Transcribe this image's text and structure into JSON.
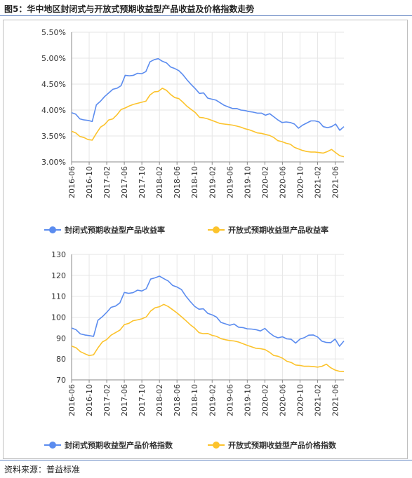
{
  "figure_title": "图5：华中地区封闭式与开放式预期收益型产品收益及价格指数走势",
  "source_label": "资料来源：普益标准",
  "colors": {
    "closed": "#5b8cef",
    "open": "#fcc32c",
    "grid": "#e6e6e6",
    "axis": "#888888"
  },
  "chart_data": [
    {
      "type": "line",
      "title": "",
      "xlabel": "",
      "ylabel": "",
      "ylim": [
        3.0,
        5.5
      ],
      "y_ticks": [
        "3.00%",
        "3.50%",
        "4.00%",
        "4.50%",
        "5.00%",
        "5.50%"
      ],
      "x_tick_labels": [
        "2016-06",
        "2016-10",
        "2017-02",
        "2017-06",
        "2017-10",
        "2018-02",
        "2018-06",
        "2018-10",
        "2019-02",
        "2019-06",
        "2019-10",
        "2020-02",
        "2020-06",
        "2020-10",
        "2021-02",
        "2021-06"
      ],
      "legend_position": "bottom-center",
      "grid": true,
      "series": [
        {
          "name": "封闭式预期收益型产品收益率",
          "values": [
            3.95,
            3.92,
            3.83,
            3.81,
            3.8,
            3.78,
            4.1,
            4.17,
            4.26,
            4.33,
            4.4,
            4.42,
            4.47,
            4.67,
            4.66,
            4.67,
            4.71,
            4.7,
            4.74,
            4.93,
            4.97,
            4.99,
            4.94,
            4.91,
            4.83,
            4.8,
            4.76,
            4.68,
            4.58,
            4.49,
            4.41,
            4.32,
            4.33,
            4.23,
            4.21,
            4.19,
            4.14,
            4.09,
            4.06,
            4.03,
            4.03,
            4.0,
            3.99,
            3.97,
            3.96,
            3.94,
            3.94,
            3.9,
            3.93,
            3.87,
            3.81,
            3.76,
            3.77,
            3.76,
            3.73,
            3.65,
            3.71,
            3.75,
            3.79,
            3.79,
            3.77,
            3.68,
            3.66,
            3.68,
            3.73,
            3.61,
            3.68
          ]
        },
        {
          "name": "开放式预期收益型产品收益率",
          "values": [
            3.59,
            3.56,
            3.49,
            3.47,
            3.43,
            3.42,
            3.55,
            3.67,
            3.72,
            3.81,
            3.83,
            3.91,
            4.01,
            4.04,
            4.08,
            4.11,
            4.13,
            4.15,
            4.17,
            4.29,
            4.35,
            4.36,
            4.42,
            4.38,
            4.3,
            4.24,
            4.22,
            4.15,
            4.07,
            4.01,
            3.95,
            3.86,
            3.85,
            3.83,
            3.8,
            3.77,
            3.74,
            3.73,
            3.72,
            3.71,
            3.69,
            3.67,
            3.64,
            3.62,
            3.59,
            3.56,
            3.55,
            3.53,
            3.51,
            3.47,
            3.41,
            3.39,
            3.36,
            3.34,
            3.28,
            3.25,
            3.22,
            3.2,
            3.19,
            3.19,
            3.18,
            3.17,
            3.2,
            3.24,
            3.18,
            3.12,
            3.1
          ]
        }
      ]
    },
    {
      "type": "line",
      "title": "",
      "xlabel": "",
      "ylabel": "",
      "ylim": [
        70,
        130
      ],
      "y_ticks": [
        "70",
        "80",
        "90",
        "100",
        "110",
        "120",
        "130"
      ],
      "x_tick_labels": [
        "2016-06",
        "2016-10",
        "2017-02",
        "2017-06",
        "2017-10",
        "2018-02",
        "2018-06",
        "2018-10",
        "2019-02",
        "2019-06",
        "2019-10",
        "2020-02",
        "2020-06",
        "2020-10",
        "2021-02",
        "2021-06"
      ],
      "legend_position": "bottom-center",
      "grid": true,
      "series": [
        {
          "name": "封闭式预期收益型产品价格指数",
          "values": [
            94.8,
            94.0,
            92.0,
            91.5,
            91.2,
            90.8,
            98.5,
            100.2,
            102.3,
            104.7,
            105.3,
            106.8,
            111.8,
            111.4,
            111.7,
            112.9,
            112.5,
            113.6,
            118.2,
            118.8,
            119.6,
            118.4,
            117.3,
            115.2,
            114.4,
            113.2,
            110.1,
            107.5,
            105.2,
            103.8,
            104.0,
            101.8,
            101.1,
            100.0,
            97.5,
            96.8,
            96.1,
            96.7,
            95.2,
            95.0,
            94.4,
            94.3,
            94.0,
            93.4,
            94.6,
            92.6,
            91.0,
            90.1,
            90.6,
            89.6,
            89.4,
            87.6,
            89.5,
            90.2,
            91.4,
            91.5,
            90.5,
            88.5,
            87.9,
            87.8,
            89.5,
            86.1,
            88.6
          ]
        },
        {
          "name": "开放式预期收益型产品价格指数",
          "values": [
            86.2,
            85.4,
            83.5,
            82.5,
            81.6,
            82.0,
            85.3,
            88.1,
            89.3,
            91.4,
            92.6,
            93.8,
            96.4,
            97.0,
            98.3,
            98.7,
            99.2,
            100.1,
            102.9,
            104.5,
            105.0,
            106.1,
            105.1,
            103.6,
            102.0,
            100.2,
            98.4,
            96.4,
            94.8,
            92.6,
            92.1,
            92.2,
            91.3,
            90.8,
            89.7,
            89.2,
            88.8,
            88.6,
            88.1,
            87.3,
            86.5,
            85.8,
            85.1,
            84.9,
            84.5,
            83.3,
            81.7,
            81.3,
            80.4,
            78.9,
            78.3,
            77.1,
            76.9,
            76.5,
            76.5,
            76.4,
            76.1,
            76.5,
            77.5,
            75.8,
            74.7,
            74.1,
            74.0
          ]
        }
      ]
    }
  ]
}
